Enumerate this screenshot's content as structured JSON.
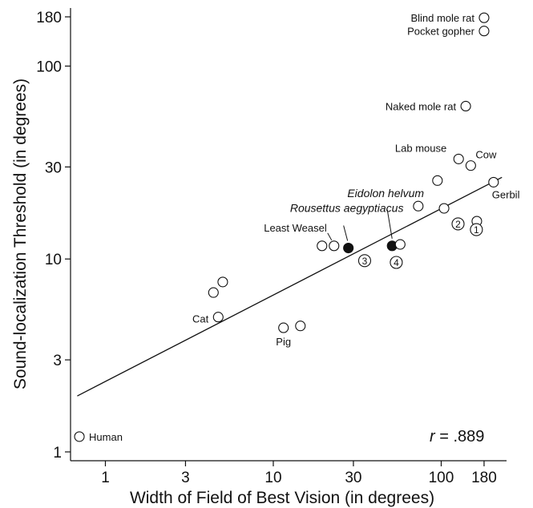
{
  "chart_data": {
    "type": "scatter",
    "xlabel": "Width of Field of Best Vision (in degrees)",
    "ylabel": "Sound-localization Threshold (in degrees)",
    "x_scale": "log",
    "y_scale": "log",
    "xlim": [
      0.62,
      245
    ],
    "ylim": [
      0.9,
      200
    ],
    "x_ticks": [
      {
        "value": 1,
        "label": "1"
      },
      {
        "value": 3,
        "label": "3"
      },
      {
        "value": 10,
        "label": "10"
      },
      {
        "value": 30,
        "label": "30"
      },
      {
        "value": 100,
        "label": "100"
      },
      {
        "value": 180,
        "label": "180"
      }
    ],
    "y_ticks": [
      {
        "value": 1,
        "label": "1"
      },
      {
        "value": 3,
        "label": "3"
      },
      {
        "value": 10,
        "label": "10"
      },
      {
        "value": 30,
        "label": "30"
      },
      {
        "value": 100,
        "label": "100"
      },
      {
        "value": 180,
        "label": "180"
      }
    ],
    "grid": false,
    "points": [
      {
        "x": 0.7,
        "y": 1.2,
        "label": "Human",
        "filled": false
      },
      {
        "x": 4.7,
        "y": 5.0,
        "label": "Cat",
        "filled": false
      },
      {
        "x": 4.4,
        "y": 6.7,
        "label": "",
        "filled": false
      },
      {
        "x": 5.0,
        "y": 7.6,
        "label": "",
        "filled": false
      },
      {
        "x": 11.5,
        "y": 4.4,
        "label": "Pig",
        "filled": false
      },
      {
        "x": 14.5,
        "y": 4.5,
        "label": "",
        "filled": false
      },
      {
        "x": 19.5,
        "y": 11.7,
        "label": "",
        "filled": false
      },
      {
        "x": 23.0,
        "y": 11.7,
        "label": "Least Weasel",
        "filled": false
      },
      {
        "x": 28.0,
        "y": 11.4,
        "label": "Rousettus aegyptiacus",
        "filled": true,
        "italic": true
      },
      {
        "x": 51.0,
        "y": 11.7,
        "label": "Eidolon helvum",
        "filled": true,
        "italic": true
      },
      {
        "x": 57.0,
        "y": 11.9,
        "label": "",
        "filled": false
      },
      {
        "x": 35.0,
        "y": 9.8,
        "label": "3",
        "filled": false,
        "numbered": true
      },
      {
        "x": 54.0,
        "y": 9.6,
        "label": "4",
        "filled": false,
        "numbered": true
      },
      {
        "x": 73.0,
        "y": 18.8,
        "label": "",
        "filled": false
      },
      {
        "x": 95.0,
        "y": 25.5,
        "label": "",
        "filled": false
      },
      {
        "x": 104.0,
        "y": 18.3,
        "label": "",
        "filled": false
      },
      {
        "x": 127.0,
        "y": 33.0,
        "label": "Lab mouse",
        "filled": false
      },
      {
        "x": 150.0,
        "y": 30.5,
        "label": "Cow",
        "filled": false
      },
      {
        "x": 126.0,
        "y": 15.2,
        "label": "2",
        "filled": false,
        "numbered": true
      },
      {
        "x": 163.0,
        "y": 15.7,
        "label": "",
        "filled": false
      },
      {
        "x": 162.0,
        "y": 14.2,
        "label": "1",
        "filled": false,
        "numbered": true
      },
      {
        "x": 205.0,
        "y": 25.0,
        "label": "Gerbil",
        "filled": false
      },
      {
        "x": 140.0,
        "y": 62.0,
        "label": "Naked mole rat",
        "filled": false
      },
      {
        "x": 180.0,
        "y": 178.0,
        "label": "Blind mole rat",
        "filled": false
      },
      {
        "x": 180.0,
        "y": 152.0,
        "label": "Pocket gopher",
        "filled": false
      }
    ],
    "fit_line": {
      "x": [
        0.68,
        230
      ],
      "y": [
        1.95,
        26.5
      ]
    },
    "annotation": {
      "prefix": "r",
      "value": " = .889"
    }
  }
}
